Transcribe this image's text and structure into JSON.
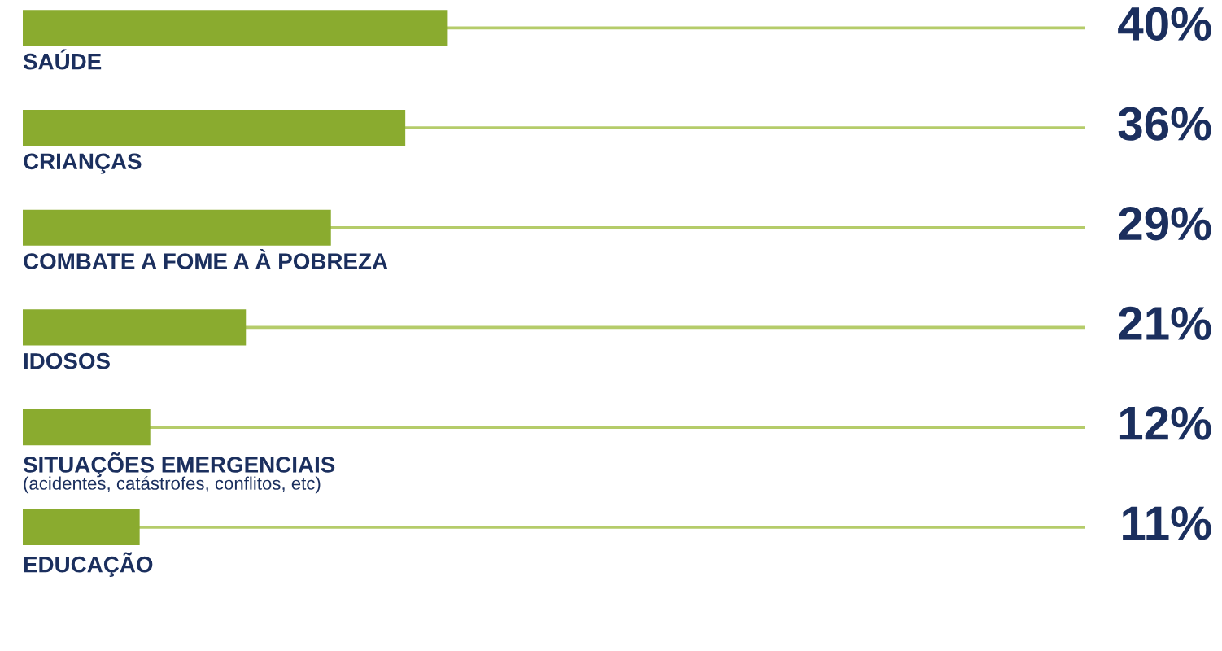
{
  "chart_data": {
    "type": "bar",
    "orientation": "horizontal",
    "categories": [
      "SAÚDE",
      "CRIANÇAS",
      "COMBATE A FOME A À POBREZA",
      "IDOSOS",
      "SITUAÇÕES EMERGENCIAIS\n(acidentes, catástrofes, conflitos, etc)",
      "EDUCAÇÃO"
    ],
    "series": [
      {
        "color": "#8aab2f",
        "values": [
          40,
          36,
          29,
          21,
          12,
          11
        ],
        "value_labels": [
          "40%",
          "36%",
          "29%",
          "21%",
          "12%",
          "11%"
        ]
      },
      {
        "color": "#b5cc6a",
        "values": [
          100,
          100,
          100,
          100,
          100,
          100
        ]
      }
    ],
    "xlim": [
      0,
      100
    ],
    "tick_labels": false
  }
}
